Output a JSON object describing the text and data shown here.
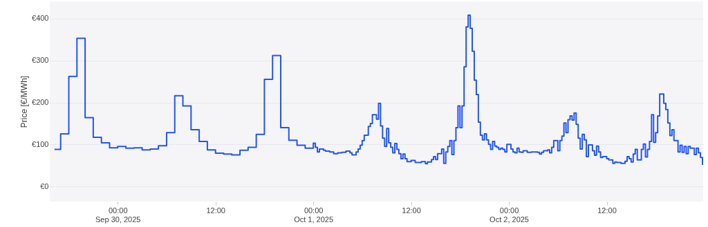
{
  "chart_data": {
    "type": "step",
    "ylabel": "Price [€/MWh]",
    "xlim": [
      "2025-09-29T15:40",
      "2025-10-02T23:50"
    ],
    "xticks": [
      {
        "value": "2025-09-30T00:00",
        "label": "00:00\nSep 30, 2025"
      },
      {
        "value": "2025-09-30T12:00",
        "label": "12:00"
      },
      {
        "value": "2025-10-01T00:00",
        "label": "00:00\nOct 1, 2025"
      },
      {
        "value": "2025-10-01T12:00",
        "label": "12:00"
      },
      {
        "value": "2025-10-02T00:00",
        "label": "00:00\nOct 2, 2025"
      },
      {
        "value": "2025-10-02T12:00",
        "label": "12:00"
      }
    ],
    "ylim": [
      -36,
      441
    ],
    "yticks": [
      {
        "value": 0,
        "label": "€0"
      },
      {
        "value": 100,
        "label": "€100"
      },
      {
        "value": 200,
        "label": "€200"
      },
      {
        "value": 300,
        "label": "€300"
      },
      {
        "value": 400,
        "label": "€400"
      }
    ],
    "grid": "y",
    "line_style": "solid",
    "marker": "none",
    "series": [
      {
        "color": "#2255f5",
        "x": [
          "2025-09-29T16:15",
          "2025-09-29T17:00",
          "2025-09-29T18:00",
          "2025-09-29T19:00",
          "2025-09-29T20:00",
          "2025-09-29T21:00",
          "2025-09-29T22:00",
          "2025-09-29T23:00",
          "2025-09-30T00:00",
          "2025-09-30T01:00",
          "2025-09-30T02:00",
          "2025-09-30T03:00",
          "2025-09-30T04:00",
          "2025-09-30T05:00",
          "2025-09-30T06:00",
          "2025-09-30T07:00",
          "2025-09-30T08:00",
          "2025-09-30T09:00",
          "2025-09-30T10:00",
          "2025-09-30T11:00",
          "2025-09-30T12:00",
          "2025-09-30T13:00",
          "2025-09-30T14:00",
          "2025-09-30T15:00",
          "2025-09-30T16:00",
          "2025-09-30T17:00",
          "2025-09-30T18:00",
          "2025-09-30T19:00",
          "2025-09-30T20:00",
          "2025-09-30T21:00",
          "2025-09-30T22:00",
          "2025-09-30T23:00",
          "2025-10-01T00:00",
          "2025-10-01T00:15",
          "2025-10-01T00:30",
          "2025-10-01T00:45",
          "2025-10-01T01:15",
          "2025-10-01T01:30",
          "2025-10-01T02:00",
          "2025-10-01T02:30",
          "2025-10-01T03:00",
          "2025-10-01T03:30",
          "2025-10-01T04:00",
          "2025-10-01T04:30",
          "2025-10-01T04:45",
          "2025-10-01T05:15",
          "2025-10-01T05:30",
          "2025-10-01T05:45",
          "2025-10-01T06:00",
          "2025-10-01T06:15",
          "2025-10-01T06:45",
          "2025-10-01T07:00",
          "2025-10-01T07:15",
          "2025-10-01T07:45",
          "2025-10-01T08:00",
          "2025-10-01T08:15",
          "2025-10-01T08:30",
          "2025-10-01T08:45",
          "2025-10-01T09:00",
          "2025-10-01T09:15",
          "2025-10-01T09:30",
          "2025-10-01T09:45",
          "2025-10-01T10:00",
          "2025-10-01T10:15",
          "2025-10-01T10:30",
          "2025-10-01T10:45",
          "2025-10-01T11:00",
          "2025-10-01T11:15",
          "2025-10-01T11:30",
          "2025-10-01T12:00",
          "2025-10-01T12:30",
          "2025-10-01T13:15",
          "2025-10-01T13:45",
          "2025-10-01T14:00",
          "2025-10-01T14:30",
          "2025-10-01T14:45",
          "2025-10-01T15:00",
          "2025-10-01T15:15",
          "2025-10-01T15:45",
          "2025-10-01T16:00",
          "2025-10-01T16:15",
          "2025-10-01T16:30",
          "2025-10-01T16:45",
          "2025-10-01T17:00",
          "2025-10-01T17:15",
          "2025-10-01T17:30",
          "2025-10-01T17:45",
          "2025-10-01T18:00",
          "2025-10-01T18:15",
          "2025-10-01T18:30",
          "2025-10-01T18:45",
          "2025-10-01T19:00",
          "2025-10-01T19:15",
          "2025-10-01T19:30",
          "2025-10-01T19:45",
          "2025-10-01T20:00",
          "2025-10-01T20:15",
          "2025-10-01T20:30",
          "2025-10-01T20:45",
          "2025-10-01T21:00",
          "2025-10-01T21:15",
          "2025-10-01T21:30",
          "2025-10-01T21:45",
          "2025-10-01T22:00",
          "2025-10-01T22:15",
          "2025-10-01T22:30",
          "2025-10-01T22:45",
          "2025-10-01T23:00",
          "2025-10-01T23:15",
          "2025-10-01T23:30",
          "2025-10-01T23:45",
          "2025-10-02T00:15",
          "2025-10-02T00:30",
          "2025-10-02T00:45",
          "2025-10-02T01:00",
          "2025-10-02T01:15",
          "2025-10-02T01:30",
          "2025-10-02T01:45",
          "2025-10-02T02:15",
          "2025-10-02T02:45",
          "2025-10-02T03:30",
          "2025-10-02T03:45",
          "2025-10-02T04:00",
          "2025-10-02T04:15",
          "2025-10-02T04:45",
          "2025-10-02T05:00",
          "2025-10-02T05:15",
          "2025-10-02T05:30",
          "2025-10-02T06:00",
          "2025-10-02T06:15",
          "2025-10-02T06:30",
          "2025-10-02T06:45",
          "2025-10-02T07:00",
          "2025-10-02T07:15",
          "2025-10-02T07:30",
          "2025-10-02T07:45",
          "2025-10-02T08:00",
          "2025-10-02T08:15",
          "2025-10-02T08:30",
          "2025-10-02T08:45",
          "2025-10-02T09:00",
          "2025-10-02T09:15",
          "2025-10-02T09:30",
          "2025-10-02T09:45",
          "2025-10-02T10:15",
          "2025-10-02T10:30",
          "2025-10-02T10:45",
          "2025-10-02T11:00",
          "2025-10-02T11:15",
          "2025-10-02T11:30",
          "2025-10-02T12:00",
          "2025-10-02T12:15",
          "2025-10-02T12:45",
          "2025-10-02T13:00",
          "2025-10-02T13:15",
          "2025-10-02T13:45",
          "2025-10-02T14:15",
          "2025-10-02T14:30",
          "2025-10-02T14:45",
          "2025-10-02T15:00",
          "2025-10-02T15:15",
          "2025-10-02T15:30",
          "2025-10-02T15:45",
          "2025-10-02T16:15",
          "2025-10-02T16:30",
          "2025-10-02T16:45",
          "2025-10-02T17:00",
          "2025-10-02T17:15",
          "2025-10-02T17:30",
          "2025-10-02T17:45",
          "2025-10-02T18:00",
          "2025-10-02T18:15",
          "2025-10-02T18:30",
          "2025-10-02T19:00",
          "2025-10-02T19:15",
          "2025-10-02T19:30",
          "2025-10-02T19:45",
          "2025-10-02T20:00",
          "2025-10-02T20:15",
          "2025-10-02T20:45",
          "2025-10-02T21:00",
          "2025-10-02T21:15",
          "2025-10-02T21:30",
          "2025-10-02T21:45",
          "2025-10-02T22:00",
          "2025-10-02T22:15",
          "2025-10-02T22:45",
          "2025-10-02T23:00",
          "2025-10-02T23:15",
          "2025-10-02T23:30",
          "2025-10-02T23:45"
        ],
        "values": [
          88,
          125,
          262,
          353,
          164,
          117,
          104,
          92,
          95,
          91,
          92,
          87,
          89,
          97,
          128,
          216,
          192,
          135,
          107,
          87,
          79,
          77,
          75,
          86,
          93,
          124,
          255,
          312,
          140,
          110,
          98,
          91,
          103,
          93,
          82,
          89,
          86,
          84,
          82,
          78,
          80,
          81,
          84,
          80,
          75,
          82,
          89,
          98,
          109,
          122,
          143,
          150,
          171,
          160,
          198,
          144,
          115,
          95,
          138,
          104,
          93,
          80,
          102,
          88,
          78,
          66,
          77,
          66,
          59,
          62,
          57,
          59,
          54,
          58,
          64,
          71,
          64,
          78,
          89,
          55,
          82,
          95,
          109,
          76,
          109,
          140,
          192,
          140,
          192,
          285,
          380,
          408,
          377,
          322,
          253,
          219,
          153,
          122,
          111,
          125,
          111,
          100,
          88,
          107,
          96,
          93,
          88,
          91,
          88,
          82,
          100,
          89,
          82,
          80,
          91,
          82,
          81,
          85,
          81,
          82,
          81,
          77,
          81,
          85,
          87,
          80,
          93,
          109,
          85,
          109,
          120,
          151,
          128,
          159,
          168,
          158,
          175,
          148,
          115,
          89,
          124,
          111,
          71,
          99,
          85,
          74,
          96,
          82,
          69,
          71,
          66,
          63,
          55,
          58,
          57,
          55,
          60,
          71,
          66,
          58,
          77,
          88,
          63,
          88,
          101,
          70,
          88,
          107,
          171,
          105,
          128,
          168,
          220,
          198,
          183,
          151,
          121,
          135,
          109,
          82,
          98,
          81,
          95,
          78,
          95,
          91,
          76,
          91,
          80,
          69,
          51
        ]
      }
    ]
  }
}
